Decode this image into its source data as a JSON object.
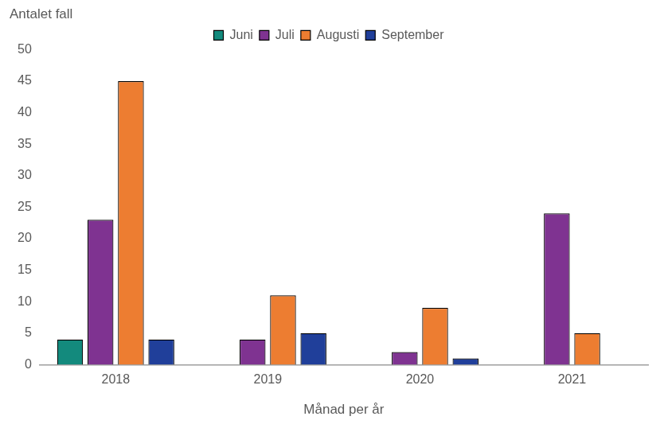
{
  "chart_data": {
    "type": "bar",
    "y_label": "Antalet fall",
    "x_label": "Månad per år",
    "categories": [
      "2018",
      "2019",
      "2020",
      "2021"
    ],
    "series": [
      {
        "name": "Juni",
        "color": "#138a7d",
        "values": [
          4,
          null,
          null,
          null
        ]
      },
      {
        "name": "Juli",
        "color": "#7f3391",
        "values": [
          23,
          4,
          2,
          24
        ]
      },
      {
        "name": "Augusti",
        "color": "#ed7d31",
        "values": [
          45,
          11,
          9,
          5
        ]
      },
      {
        "name": "September",
        "color": "#203f9a",
        "values": [
          4,
          5,
          1,
          null
        ]
      }
    ],
    "ylim": [
      0,
      50
    ],
    "yticks": [
      0,
      5,
      10,
      15,
      20,
      25,
      30,
      35,
      40,
      45,
      50
    ],
    "grid": false,
    "legend": "top"
  }
}
